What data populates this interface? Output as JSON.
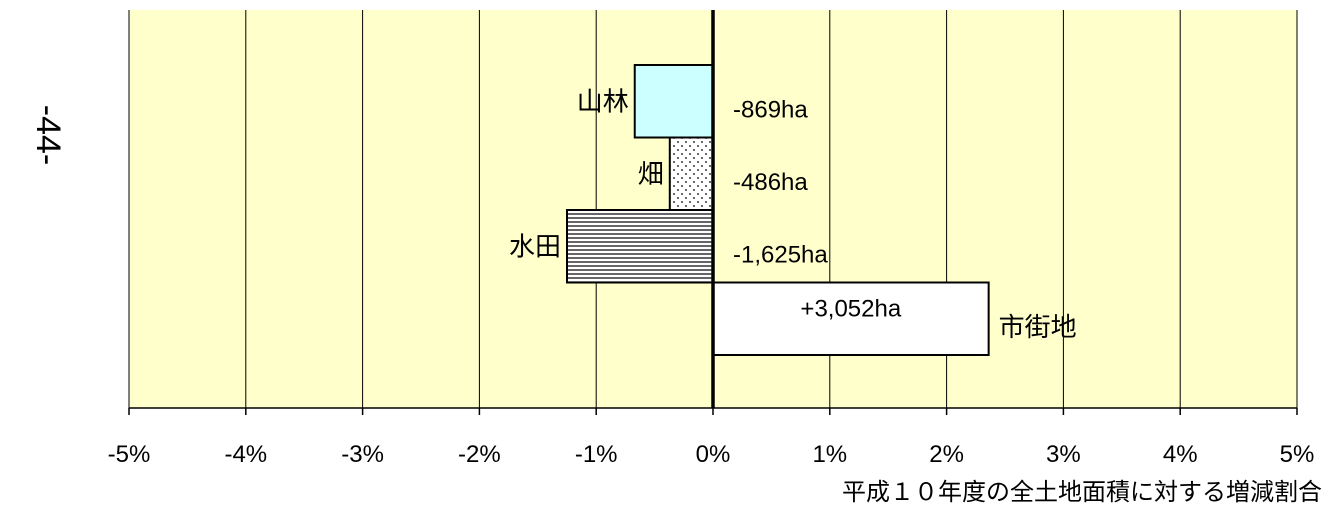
{
  "page_number": "-44-",
  "chart_data": {
    "type": "bar",
    "orientation": "horizontal",
    "xlabel": "平成１０年度の全土地面積に対する増減割合",
    "xlim": [
      -5,
      5
    ],
    "x_ticks": [
      -5,
      -4,
      -3,
      -2,
      -1,
      0,
      1,
      2,
      3,
      4,
      5
    ],
    "x_tick_labels": [
      "-5%",
      "-4%",
      "-3%",
      "-2%",
      "-1%",
      "0%",
      "1%",
      "2%",
      "3%",
      "4%",
      "5%"
    ],
    "grid": "vertical",
    "categories": [
      "山林",
      "畑",
      "水田",
      "市街地"
    ],
    "values": [
      -0.67,
      -0.37,
      -1.25,
      2.36
    ],
    "value_labels": [
      "-869ha",
      "-486ha",
      "-1,625ha",
      "+3,052ha"
    ],
    "colors": {
      "background": "#ffffcc",
      "山林": "#ccffff",
      "畑": "#ffffff",
      "水田": "#ffffff",
      "市街地": "#ffffff"
    },
    "fills": [
      "solid",
      "dots",
      "horizontal-lines",
      "solid"
    ]
  }
}
